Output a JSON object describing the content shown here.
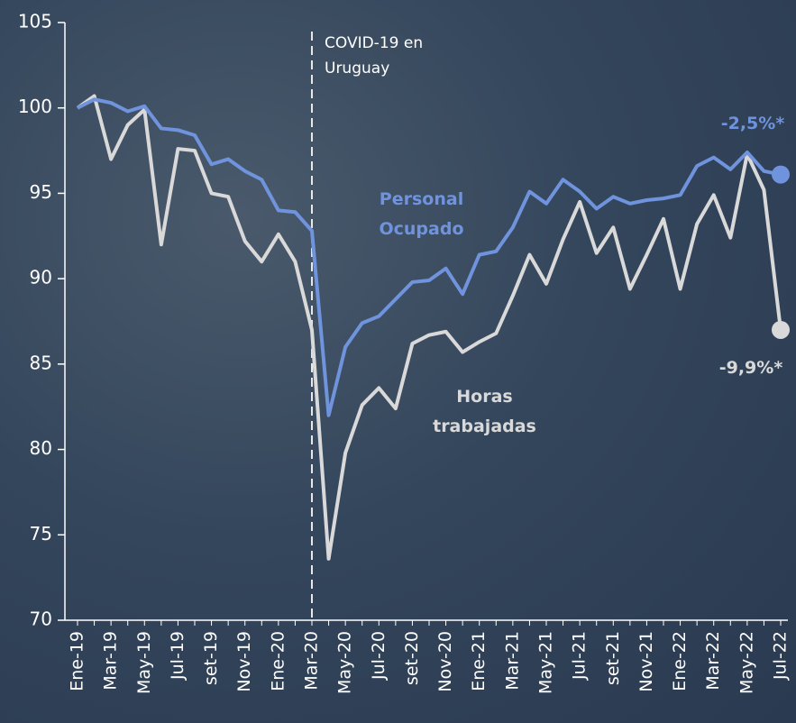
{
  "chart_data": {
    "type": "line",
    "categories": [
      "Ene-19",
      null,
      "Mar-19",
      null,
      "May-19",
      null,
      "Jul-19",
      null,
      "set-19",
      null,
      "Nov-19",
      null,
      "Ene-20",
      null,
      "Mar-20",
      null,
      "May-20",
      null,
      "Jul-20",
      null,
      "set-20",
      null,
      "Nov-20",
      null,
      "Ene-21",
      null,
      "Mar-21",
      null,
      "May-21",
      null,
      "Jul-21",
      null,
      "set-21",
      null,
      "Nov-21",
      null,
      "Ene-22",
      null,
      "Mar-22",
      null,
      "May-22",
      null,
      "Jul-22"
    ],
    "series": [
      {
        "name": "Personal Ocupado",
        "color": "#6f93dc",
        "end_label": "-2,5%*",
        "values": [
          100,
          100.5,
          100.3,
          99.8,
          100.1,
          98.8,
          98.7,
          98.4,
          96.7,
          97.0,
          96.3,
          95.8,
          94.0,
          93.9,
          92.8,
          82.0,
          86.0,
          87.4,
          87.8,
          88.8,
          89.8,
          89.9,
          90.6,
          89.1,
          91.4,
          91.6,
          93.0,
          95.1,
          94.4,
          95.8,
          95.1,
          94.1,
          94.8,
          94.4,
          94.6,
          94.7,
          94.9,
          96.6,
          97.1,
          96.4,
          97.4,
          96.3,
          96.1
        ]
      },
      {
        "name": "Horas trabajadas",
        "color": "#d9d9d9",
        "end_label": "-9,9%*",
        "values": [
          100,
          100.7,
          97.0,
          99.0,
          99.9,
          92.0,
          97.6,
          97.5,
          95.0,
          94.8,
          92.2,
          91.0,
          92.6,
          91.0,
          87.0,
          73.6,
          79.8,
          82.6,
          83.6,
          82.4,
          86.2,
          86.7,
          86.9,
          85.7,
          86.3,
          86.8,
          89.0,
          91.4,
          89.7,
          92.3,
          94.5,
          91.5,
          93.0,
          89.4,
          91.4,
          93.5,
          89.4,
          93.2,
          94.9,
          92.4,
          97.3,
          95.2,
          87.0
        ]
      }
    ],
    "event_at": "Mar-20",
    "event_label": "COVID-19 en Uruguay",
    "ylim": [
      70,
      105
    ],
    "yticks": [
      70,
      75,
      80,
      85,
      90,
      95,
      100,
      105
    ],
    "grid": false
  }
}
